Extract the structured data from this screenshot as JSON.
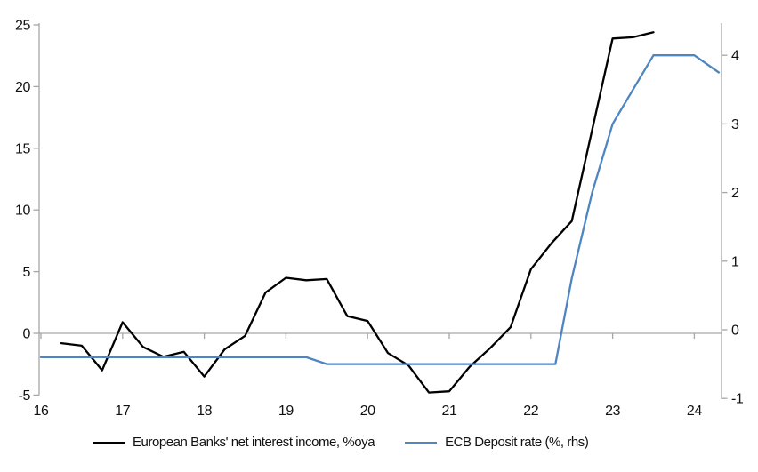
{
  "chart_data": {
    "type": "line",
    "title": "",
    "x_axis": {
      "ticks": [
        16,
        17,
        18,
        19,
        20,
        21,
        22,
        23,
        24
      ],
      "range": [
        16,
        24.35
      ],
      "grid": false
    },
    "left_axis": {
      "ticks": [
        -5,
        0,
        5,
        10,
        15,
        20,
        25
      ],
      "range": [
        -5,
        25
      ]
    },
    "right_axis": {
      "ticks": [
        -1,
        0,
        1,
        2,
        3,
        4
      ],
      "range": [
        -1.05,
        4.45
      ]
    },
    "zero_line": true,
    "legend_position": "bottom",
    "series": [
      {
        "name": "European Banks' net interest income, %oya",
        "axis": "left",
        "color": "#000000",
        "points": [
          [
            16.25,
            -0.8
          ],
          [
            16.5,
            -1.0
          ],
          [
            16.75,
            -3.0
          ],
          [
            17.0,
            0.9
          ],
          [
            17.25,
            -1.1
          ],
          [
            17.5,
            -1.9
          ],
          [
            17.75,
            -1.5
          ],
          [
            18.0,
            -3.5
          ],
          [
            18.25,
            -1.3
          ],
          [
            18.5,
            -0.2
          ],
          [
            18.75,
            3.3
          ],
          [
            19.0,
            4.5
          ],
          [
            19.25,
            4.3
          ],
          [
            19.5,
            4.4
          ],
          [
            19.75,
            1.4
          ],
          [
            20.0,
            1.0
          ],
          [
            20.25,
            -1.6
          ],
          [
            20.5,
            -2.6
          ],
          [
            20.75,
            -4.8
          ],
          [
            21.0,
            -4.7
          ],
          [
            21.25,
            -2.7
          ],
          [
            21.5,
            -1.2
          ],
          [
            21.75,
            0.5
          ],
          [
            22.0,
            5.2
          ],
          [
            22.25,
            7.3
          ],
          [
            22.5,
            9.1
          ],
          [
            22.75,
            16.5
          ],
          [
            23.0,
            23.9
          ],
          [
            23.25,
            24.0
          ],
          [
            23.5,
            24.4
          ]
        ]
      },
      {
        "name": "ECB Deposit rate (%, rhs)",
        "axis": "right",
        "color": "#4f86c0",
        "points": [
          [
            16.0,
            -0.4
          ],
          [
            19.25,
            -0.4
          ],
          [
            19.5,
            -0.5
          ],
          [
            22.3,
            -0.5
          ],
          [
            22.5,
            0.75
          ],
          [
            22.75,
            2.0
          ],
          [
            23.0,
            3.0
          ],
          [
            23.25,
            3.5
          ],
          [
            23.5,
            4.0
          ],
          [
            24.0,
            4.0
          ],
          [
            24.3,
            3.75
          ]
        ]
      }
    ]
  },
  "colors": {
    "axis": "#a6a6a6",
    "zero_line": "#a6a6a6",
    "text": "#111111",
    "background": "#ffffff"
  }
}
